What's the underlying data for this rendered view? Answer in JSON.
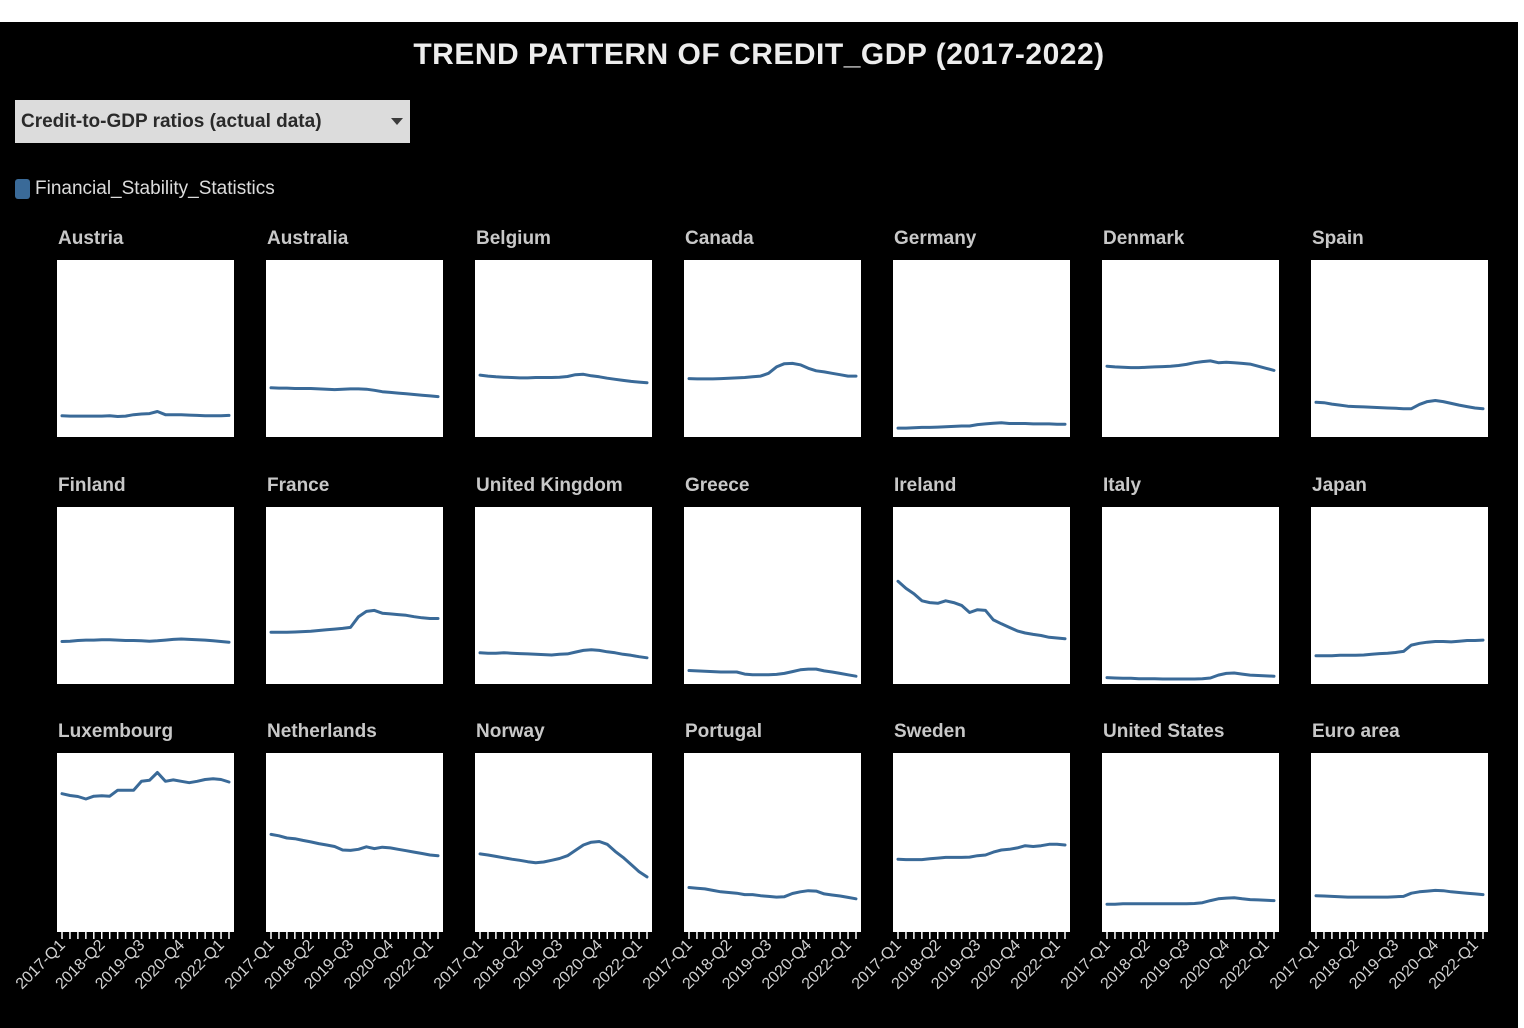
{
  "title": "TREND PATTERN OF CREDIT_GDP (2017-2022)",
  "selector": {
    "selected": "Credit-to-GDP ratios (actual data)",
    "icon": "chevron-down-icon"
  },
  "legend": {
    "label": "Financial_Stability_Statistics",
    "color": "#3a6a98"
  },
  "chart_data": {
    "type": "line",
    "layout": "small-multiples",
    "title": "TREND PATTERN OF CREDIT_GDP (2017-2022)",
    "series_color": "#3a6a98",
    "panel_background": "#ffffff",
    "page_background": "#000000",
    "ylim": [
      0,
      500
    ],
    "grid": false,
    "legend_position": "top-left",
    "x_tick_labels": [
      "2017-Q1",
      "2018-Q2",
      "2019-Q3",
      "2020-Q4",
      "2022-Q1"
    ],
    "x_label_positions": [
      0,
      5,
      10,
      15,
      20
    ],
    "quarters": [
      "2017-Q1",
      "2017-Q2",
      "2017-Q3",
      "2017-Q4",
      "2018-Q1",
      "2018-Q2",
      "2018-Q3",
      "2018-Q4",
      "2019-Q1",
      "2019-Q2",
      "2019-Q3",
      "2019-Q4",
      "2020-Q1",
      "2020-Q2",
      "2020-Q3",
      "2020-Q4",
      "2021-Q1",
      "2021-Q2",
      "2021-Q3",
      "2021-Q4",
      "2022-Q1",
      "2022-Q2"
    ],
    "panels": [
      {
        "name": "Austria",
        "values": [
          60,
          59,
          59,
          59,
          59,
          59,
          60,
          58,
          59,
          63,
          65,
          66,
          72,
          63,
          63,
          63,
          62,
          61,
          60,
          60,
          60,
          61
        ]
      },
      {
        "name": "Australia",
        "values": [
          139,
          138,
          138,
          137,
          137,
          137,
          136,
          135,
          134,
          135,
          136,
          136,
          135,
          132,
          128,
          126,
          124,
          122,
          120,
          118,
          116,
          114
        ]
      },
      {
        "name": "Belgium",
        "values": [
          175,
          172,
          170,
          169,
          168,
          167,
          167,
          168,
          168,
          168,
          169,
          171,
          176,
          177,
          173,
          170,
          166,
          163,
          160,
          157,
          155,
          153
        ]
      },
      {
        "name": "Canada",
        "values": [
          165,
          164,
          164,
          164,
          165,
          166,
          167,
          168,
          170,
          172,
          180,
          198,
          207,
          208,
          204,
          194,
          187,
          184,
          180,
          176,
          172,
          172
        ]
      },
      {
        "name": "Germany",
        "values": [
          25,
          25,
          26,
          27,
          27,
          28,
          29,
          30,
          31,
          31,
          35,
          37,
          39,
          40,
          38,
          38,
          38,
          37,
          37,
          37,
          36,
          36
        ]
      },
      {
        "name": "Denmark",
        "values": [
          200,
          198,
          197,
          196,
          196,
          197,
          198,
          199,
          200,
          202,
          205,
          210,
          213,
          215,
          210,
          211,
          210,
          208,
          206,
          200,
          194,
          188
        ]
      },
      {
        "name": "Spain",
        "values": [
          98,
          97,
          93,
          90,
          87,
          86,
          85,
          84,
          83,
          82,
          81,
          80,
          80,
          92,
          100,
          103,
          100,
          95,
          90,
          86,
          82,
          80
        ]
      },
      {
        "name": "Finland",
        "values": [
          120,
          121,
          123,
          124,
          124,
          125,
          125,
          124,
          123,
          123,
          122,
          121,
          122,
          124,
          126,
          127,
          126,
          125,
          124,
          122,
          120,
          118
        ]
      },
      {
        "name": "France",
        "values": [
          146,
          146,
          146,
          147,
          148,
          149,
          151,
          153,
          155,
          157,
          160,
          190,
          205,
          208,
          200,
          198,
          196,
          194,
          190,
          187,
          185,
          185
        ]
      },
      {
        "name": "United Kingdom",
        "values": [
          88,
          87,
          87,
          88,
          87,
          86,
          85,
          84,
          83,
          82,
          84,
          85,
          90,
          95,
          97,
          95,
          91,
          88,
          84,
          81,
          77,
          74
        ]
      },
      {
        "name": "Greece",
        "values": [
          38,
          37,
          36,
          35,
          34,
          34,
          34,
          28,
          26,
          26,
          26,
          27,
          30,
          35,
          40,
          42,
          42,
          37,
          34,
          30,
          26,
          22
        ]
      },
      {
        "name": "Ireland",
        "values": [
          290,
          270,
          255,
          235,
          230,
          228,
          235,
          230,
          222,
          202,
          210,
          208,
          181,
          170,
          160,
          150,
          144,
          140,
          137,
          132,
          130,
          128
        ]
      },
      {
        "name": "Italy",
        "values": [
          18,
          17,
          16,
          16,
          15,
          15,
          15,
          14,
          14,
          14,
          14,
          14,
          15,
          17,
          25,
          30,
          31,
          28,
          25,
          24,
          23,
          22
        ]
      },
      {
        "name": "Japan",
        "values": [
          80,
          80,
          80,
          81,
          81,
          81,
          82,
          84,
          86,
          87,
          89,
          92,
          110,
          115,
          118,
          120,
          120,
          119,
          121,
          123,
          123,
          124
        ]
      },
      {
        "name": "Luxembourg",
        "values": [
          385,
          380,
          377,
          370,
          378,
          379,
          378,
          395,
          395,
          395,
          420,
          423,
          445,
          420,
          424,
          420,
          416,
          420,
          425,
          427,
          425,
          418
        ]
      },
      {
        "name": "Netherlands",
        "values": [
          270,
          266,
          260,
          258,
          253,
          249,
          244,
          240,
          236,
          226,
          225,
          228,
          235,
          230,
          234,
          232,
          228,
          224,
          220,
          216,
          212,
          210
        ]
      },
      {
        "name": "Norway",
        "values": [
          215,
          212,
          208,
          204,
          200,
          197,
          193,
          190,
          192,
          197,
          202,
          210,
          225,
          240,
          248,
          250,
          242,
          222,
          205,
          185,
          165,
          150
        ]
      },
      {
        "name": "Portugal",
        "values": [
          120,
          118,
          116,
          112,
          108,
          106,
          104,
          100,
          100,
          97,
          95,
          93,
          94,
          103,
          108,
          111,
          110,
          102,
          99,
          96,
          92,
          88
        ]
      },
      {
        "name": "Sweden",
        "values": [
          200,
          199,
          199,
          199,
          201,
          203,
          205,
          205,
          205,
          206,
          210,
          212,
          220,
          226,
          228,
          232,
          238,
          236,
          238,
          242,
          242,
          240
        ]
      },
      {
        "name": "United States",
        "values": [
          73,
          73,
          74,
          74,
          74,
          74,
          74,
          74,
          74,
          74,
          74,
          75,
          77,
          83,
          88,
          90,
          91,
          88,
          86,
          85,
          84,
          83
        ]
      },
      {
        "name": "Euro area",
        "values": [
          97,
          96,
          95,
          94,
          93,
          93,
          93,
          93,
          93,
          93,
          94,
          95,
          104,
          108,
          110,
          112,
          111,
          108,
          106,
          104,
          102,
          100
        ]
      }
    ]
  }
}
